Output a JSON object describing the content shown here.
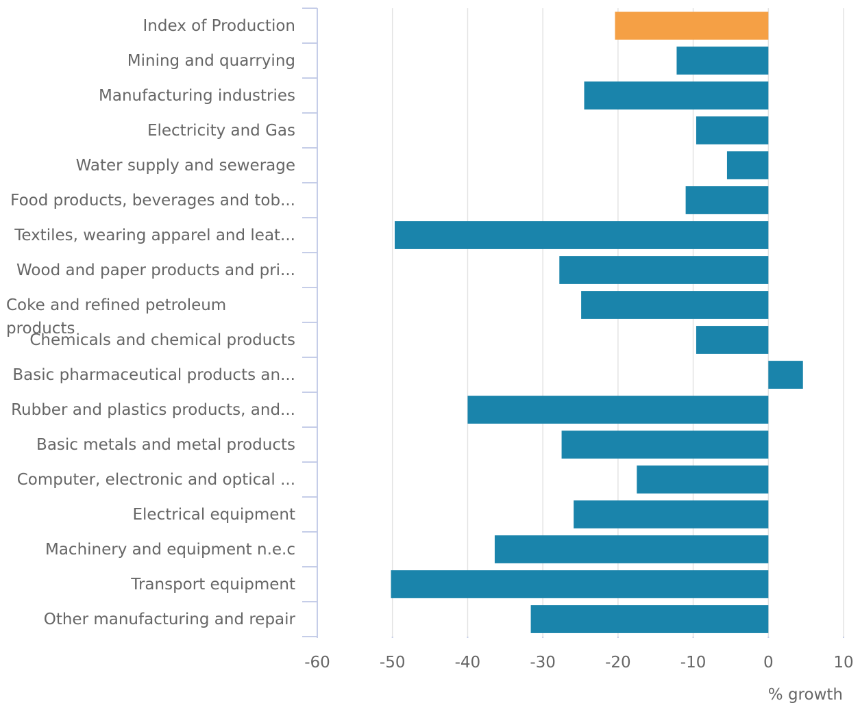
{
  "chart_data": {
    "type": "barh",
    "x_label": "% growth",
    "categories": [
      "Index of Production",
      "Mining and quarrying",
      "Manufacturing industries",
      "Electricity and Gas",
      "Water supply and sewerage",
      "Food products, beverages and tob...",
      "Textiles, wearing apparel and leat...",
      "Wood and paper products and pri...",
      "Coke and refined petroleum products",
      "Chemicals and chemical products",
      "Basic pharmaceutical products an...",
      "Rubber and plastics products, and...",
      "Basic metals and metal products",
      "Computer, electronic and optical ...",
      "Electrical equipment",
      "Machinery and equipment n.e.c",
      "Transport equipment",
      "Other manufacturing and repair"
    ],
    "values": [
      -20.4,
      -12.2,
      -24.5,
      -9.6,
      -5.5,
      -11.0,
      -49.7,
      -27.8,
      -24.9,
      -9.6,
      4.6,
      -40.0,
      -27.5,
      -17.5,
      -25.9,
      -36.4,
      -50.2,
      -31.6
    ],
    "colors": [
      "#f5a045",
      "#1a84ab",
      "#1a84ab",
      "#1a84ab",
      "#1a84ab",
      "#1a84ab",
      "#1a84ab",
      "#1a84ab",
      "#1a84ab",
      "#1a84ab",
      "#1a84ab",
      "#1a84ab",
      "#1a84ab",
      "#1a84ab",
      "#1a84ab",
      "#1a84ab",
      "#1a84ab",
      "#1a84ab"
    ],
    "xlim": [
      -60,
      10
    ],
    "xticks": [
      -60,
      -50,
      -40,
      -30,
      -20,
      -10,
      0,
      10
    ],
    "grid": true
  }
}
